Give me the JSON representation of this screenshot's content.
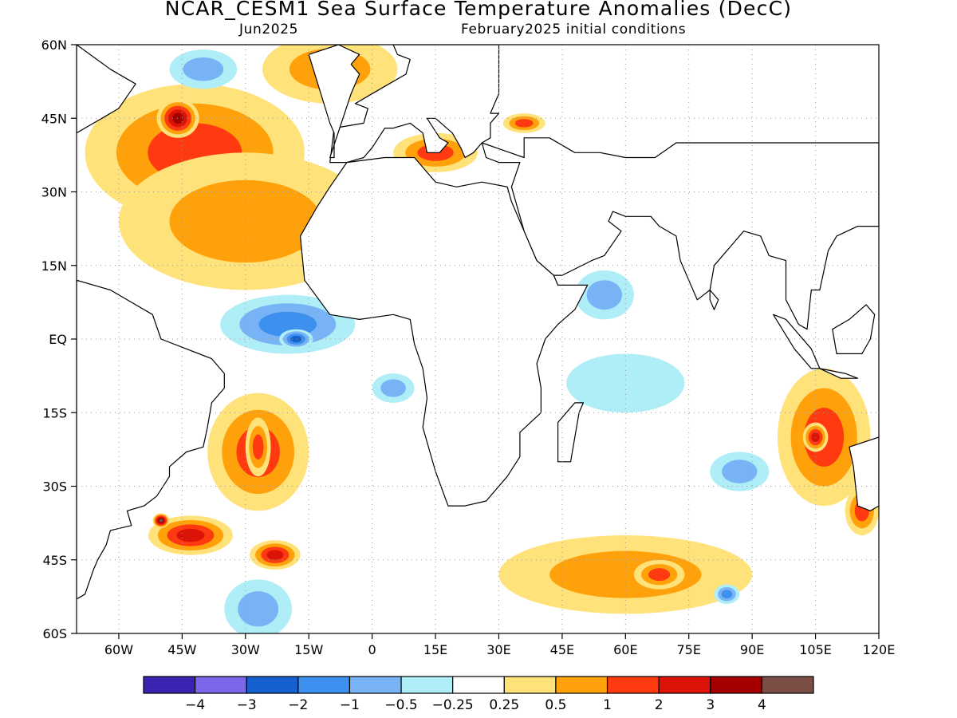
{
  "header": {
    "title": "NCAR_CESM1 Sea Surface Temperature Anomalies (DecC)",
    "forecast_month": "Jun2025",
    "init_conditions": "February2025 initial conditions"
  },
  "map": {
    "projection": "lat-lon",
    "lon_range": [
      -70,
      120
    ],
    "lat_range": [
      -60,
      60
    ],
    "grid": "dotted",
    "lat_ticks": [
      {
        "value": 60,
        "label": "60N"
      },
      {
        "value": 45,
        "label": "45N"
      },
      {
        "value": 30,
        "label": "30N"
      },
      {
        "value": 15,
        "label": "15N"
      },
      {
        "value": 0,
        "label": "EQ"
      },
      {
        "value": -15,
        "label": "15S"
      },
      {
        "value": -30,
        "label": "30S"
      },
      {
        "value": -45,
        "label": "45S"
      },
      {
        "value": -60,
        "label": "60S"
      }
    ],
    "lon_ticks": [
      {
        "value": -60,
        "label": "60W"
      },
      {
        "value": -45,
        "label": "45W"
      },
      {
        "value": -30,
        "label": "30W"
      },
      {
        "value": -15,
        "label": "15W"
      },
      {
        "value": 0,
        "label": "0"
      },
      {
        "value": 15,
        "label": "15E"
      },
      {
        "value": 30,
        "label": "30E"
      },
      {
        "value": 45,
        "label": "45E"
      },
      {
        "value": 60,
        "label": "60E"
      },
      {
        "value": 75,
        "label": "75E"
      },
      {
        "value": 90,
        "label": "90E"
      },
      {
        "value": 105,
        "label": "105E"
      },
      {
        "value": 120,
        "label": "120E"
      }
    ]
  },
  "colorbar": {
    "colors": [
      "#3a23b0",
      "#7b68e8",
      "#1660cf",
      "#3e90ee",
      "#78b4f5",
      "#b0eef7",
      "#ffffff",
      "#ffe27a",
      "#ffa10a",
      "#ff3a10",
      "#dc1408",
      "#a50000",
      "#7a4e44"
    ],
    "labels": [
      "−4",
      "−3",
      "−2",
      "−1",
      "−0.5",
      "−0.25",
      "0.25",
      "0.5",
      "1",
      "2",
      "3",
      "4"
    ]
  },
  "chart_data": {
    "type": "heatmap",
    "title": "NCAR_CESM1 Sea Surface Temperature Anomalies (DecC)",
    "subtitle": "Jun2025  February2025 initial conditions",
    "x_range": [
      -70,
      120
    ],
    "y_range": [
      -60,
      60
    ],
    "levels": [
      -4,
      -3,
      -2,
      -1,
      -0.5,
      -0.25,
      0.25,
      0.5,
      1,
      2,
      3,
      4
    ],
    "anomaly_regions": [
      {
        "lon": -42,
        "lat": 38,
        "rx": 26,
        "ry": 14,
        "value": 1.5
      },
      {
        "lon": -46,
        "lat": 45,
        "rx": 5,
        "ry": 4,
        "value": 3.2
      },
      {
        "lon": -30,
        "lat": 24,
        "rx": 30,
        "ry": 14,
        "value": 0.8
      },
      {
        "lon": -10,
        "lat": 55,
        "rx": 16,
        "ry": 7,
        "value": 0.8
      },
      {
        "lon": -40,
        "lat": 55,
        "rx": 8,
        "ry": 4,
        "value": -0.8
      },
      {
        "lon": -20,
        "lat": 3,
        "rx": 16,
        "ry": 6,
        "value": -1.0
      },
      {
        "lon": -18,
        "lat": 0,
        "rx": 4,
        "ry": 2,
        "value": -2.2
      },
      {
        "lon": 5,
        "lat": -10,
        "rx": 5,
        "ry": 3,
        "value": -0.7
      },
      {
        "lon": -27,
        "lat": -23,
        "rx": 12,
        "ry": 12,
        "value": 1.0
      },
      {
        "lon": -27,
        "lat": -22,
        "rx": 3,
        "ry": 6,
        "value": 1.8
      },
      {
        "lon": -43,
        "lat": -40,
        "rx": 10,
        "ry": 4,
        "value": 2.5
      },
      {
        "lon": -50,
        "lat": -37,
        "rx": 2,
        "ry": 1.5,
        "value": 4.5
      },
      {
        "lon": -23,
        "lat": -44,
        "rx": 6,
        "ry": 3,
        "value": 2.0
      },
      {
        "lon": -27,
        "lat": -55,
        "rx": 8,
        "ry": 6,
        "value": -0.8
      },
      {
        "lon": 60,
        "lat": -48,
        "rx": 30,
        "ry": 8,
        "value": 0.9
      },
      {
        "lon": 68,
        "lat": -48,
        "rx": 6,
        "ry": 3,
        "value": 1.8
      },
      {
        "lon": 107,
        "lat": -20,
        "rx": 11,
        "ry": 14,
        "value": 1.0
      },
      {
        "lon": 105,
        "lat": -20,
        "rx": 3,
        "ry": 3,
        "value": 2.0
      },
      {
        "lon": 116,
        "lat": -35,
        "rx": 4,
        "ry": 5,
        "value": 1.8
      },
      {
        "lon": 87,
        "lat": -27,
        "rx": 7,
        "ry": 4,
        "value": -0.8
      },
      {
        "lon": 84,
        "lat": -52,
        "rx": 3,
        "ry": 2,
        "value": -1.5
      },
      {
        "lon": 55,
        "lat": 9,
        "rx": 7,
        "ry": 5,
        "value": -0.8
      },
      {
        "lon": 60,
        "lat": -9,
        "rx": 14,
        "ry": 6,
        "value": -0.3
      },
      {
        "lon": 15,
        "lat": 38,
        "rx": 10,
        "ry": 4,
        "value": 1.6
      },
      {
        "lon": 36,
        "lat": 44,
        "rx": 5,
        "ry": 2,
        "value": 1.6
      }
    ]
  }
}
